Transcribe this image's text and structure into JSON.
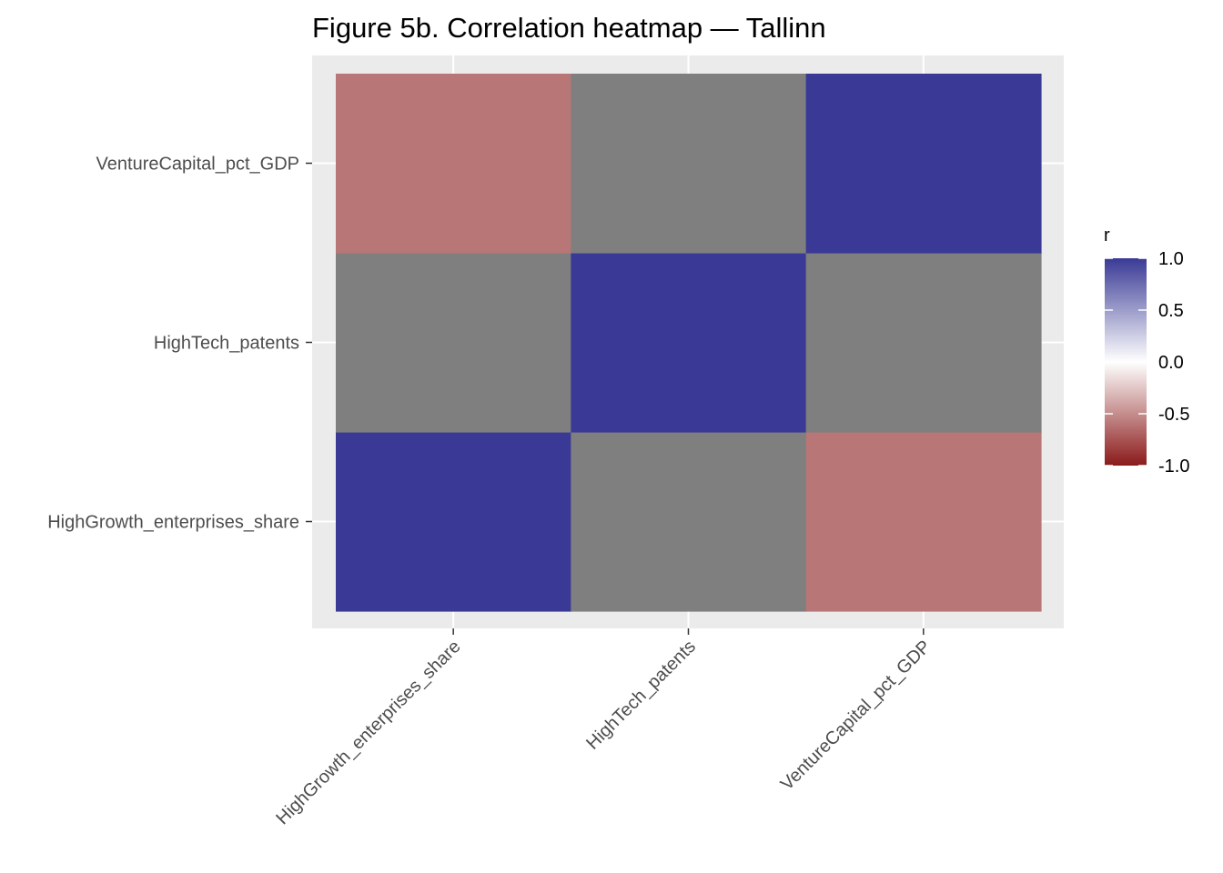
{
  "chart_data": {
    "type": "heatmap",
    "title": "Figure 5b. Correlation heatmap — Tallinn",
    "x_categories": [
      "HighGrowth_enterprises_share",
      "HighTech_patents",
      "VentureCapital_pct_GDP"
    ],
    "y_categories": [
      "HighGrowth_enterprises_share",
      "HighTech_patents",
      "VentureCapital_pct_GDP"
    ],
    "values": [
      [
        1.0,
        null,
        -0.6
      ],
      [
        null,
        1.0,
        null
      ],
      [
        -0.6,
        null,
        1.0
      ]
    ],
    "na_color": "#7f7f7f",
    "legend": {
      "title": "r",
      "ticks": [
        1.0,
        0.5,
        0.0,
        -0.5,
        -1.0
      ],
      "tick_labels": [
        "1.0",
        "0.5",
        "0.0",
        "-0.5",
        "-1.0"
      ],
      "range": [
        -1,
        1
      ],
      "low_color": "#8b1a1a",
      "mid_color": "#ffffff",
      "high_color": "#3a3a96",
      "placement": "right"
    },
    "grid": true,
    "panel_background": "#ebebeb"
  }
}
